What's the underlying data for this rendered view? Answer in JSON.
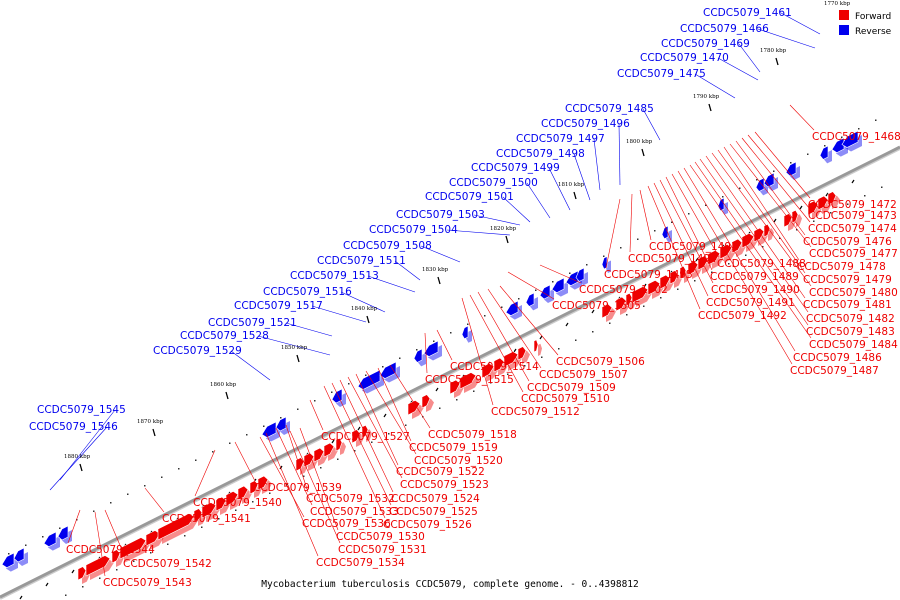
{
  "caption": "Mycobacterium tuberculosis CCDC5079, complete genome. - 0..4398812",
  "legend": {
    "forward": {
      "label": "Forward",
      "color": "#ee0000"
    },
    "reverse": {
      "label": "Reverse",
      "color": "#0000ee"
    }
  },
  "colors": {
    "forward": "#ee0000",
    "reverse": "#0000ee",
    "backbone": "#999999",
    "tick": "#000000"
  },
  "ruler": {
    "ticks": [
      "1770 kbp",
      "1780 kbp",
      "1790 kbp",
      "1800 kbp",
      "1810 kbp",
      "1820 kbp",
      "1830 kbp",
      "1840 kbp",
      "1850 kbp",
      "1860 kbp",
      "1870 kbp",
      "1880 kbp"
    ]
  },
  "reverse_genes": [
    "CCDC5079_1461",
    "CCDC5079_1466",
    "CCDC5079_1469",
    "CCDC5079_1470",
    "CCDC5079_1475",
    "CCDC5079_1485",
    "CCDC5079_1496",
    "CCDC5079_1497",
    "CCDC5079_1498",
    "CCDC5079_1499",
    "CCDC5079_1500",
    "CCDC5079_1501",
    "CCDC5079_1503",
    "CCDC5079_1504",
    "CCDC5079_1508",
    "CCDC5079_1511",
    "CCDC5079_1513",
    "CCDC5079_1516",
    "CCDC5079_1517",
    "CCDC5079_1521",
    "CCDC5079_1528",
    "CCDC5079_1529",
    "CCDC5079_1545",
    "CCDC5079_1546"
  ],
  "forward_genes": [
    "CCDC5079_1468",
    "CCDC5079_1472",
    "CCDC5079_1473",
    "CCDC5079_1474",
    "CCDC5079_1476",
    "CCDC5079_1477",
    "CCDC5079_1478",
    "CCDC5079_1479",
    "CCDC5079_1480",
    "CCDC5079_1481",
    "CCDC5079_1482",
    "CCDC5079_1483",
    "CCDC5079_1484",
    "CCDC5079_1486",
    "CCDC5079_1487",
    "CCDC5079_1488",
    "CCDC5079_1489",
    "CCDC5079_1490",
    "CCDC5079_1491",
    "CCDC5079_1492",
    "CCDC5079_1493",
    "CCDC5079_1494",
    "CCDC5079_1495",
    "CCDC5079_1502",
    "CCDC5079_1505",
    "CCDC5079_1506",
    "CCDC5079_1507",
    "CCDC5079_1509",
    "CCDC5079_1510",
    "CCDC5079_1512",
    "CCDC5079_1514",
    "CCDC5079_1515",
    "CCDC5079_1518",
    "CCDC5079_1519",
    "CCDC5079_1520",
    "CCDC5079_1522",
    "CCDC5079_1523",
    "CCDC5079_1524",
    "CCDC5079_1525",
    "CCDC5079_1526",
    "CCDC5079_1527",
    "CCDC5079_1530",
    "CCDC5079_1531",
    "CCDC5079_1532",
    "CCDC5079_1533",
    "CCDC5079_1534",
    "CCDC5079_1536",
    "CCDC5079_1539",
    "CCDC5079_1540",
    "CCDC5079_1541",
    "CCDC5079_1542",
    "CCDC5079_1543",
    "CCDC5079_1544"
  ]
}
